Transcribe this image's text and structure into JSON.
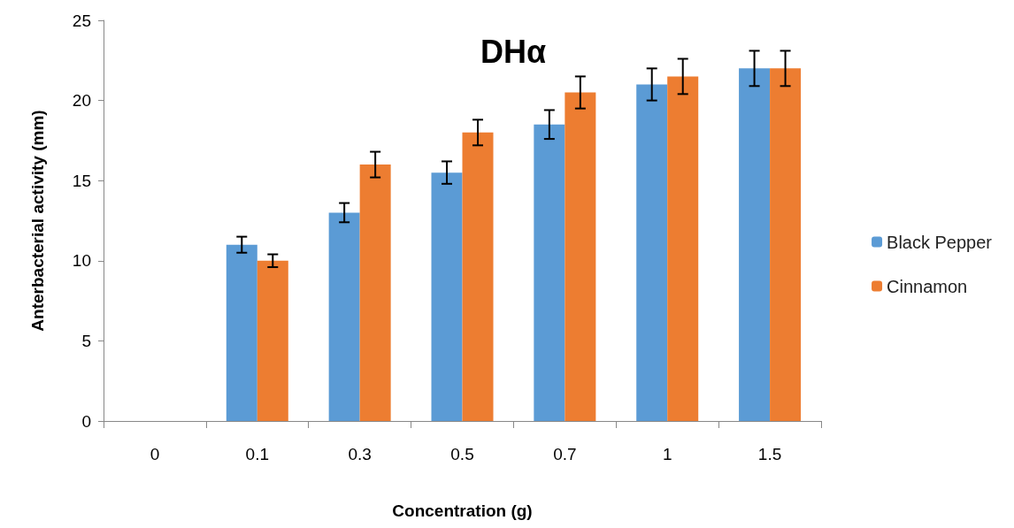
{
  "chart_data": {
    "type": "bar",
    "title": "DHα",
    "xlabel": "Concentration (g)",
    "ylabel": "Anterbacterial activity (mm)",
    "categories": [
      "0",
      "0.1",
      "0.3",
      "0.5",
      "0.7",
      "1",
      "1.5"
    ],
    "series": [
      {
        "name": "Black Pepper",
        "color": "#5b9bd5",
        "values": [
          0,
          11,
          13,
          15.5,
          18.5,
          21,
          22
        ],
        "errors": [
          null,
          0.5,
          0.6,
          0.7,
          0.9,
          1,
          1.1
        ]
      },
      {
        "name": "Cinnamon",
        "color": "#ed7d31",
        "values": [
          0,
          10,
          16,
          18,
          20.5,
          21.5,
          22
        ],
        "errors": [
          null,
          0.4,
          0.8,
          0.8,
          1,
          1.1,
          1.1
        ]
      }
    ],
    "ylim": [
      0,
      25
    ],
    "yticks": [
      0,
      5,
      10,
      15,
      20,
      25
    ],
    "grid": false,
    "legend": "right"
  }
}
